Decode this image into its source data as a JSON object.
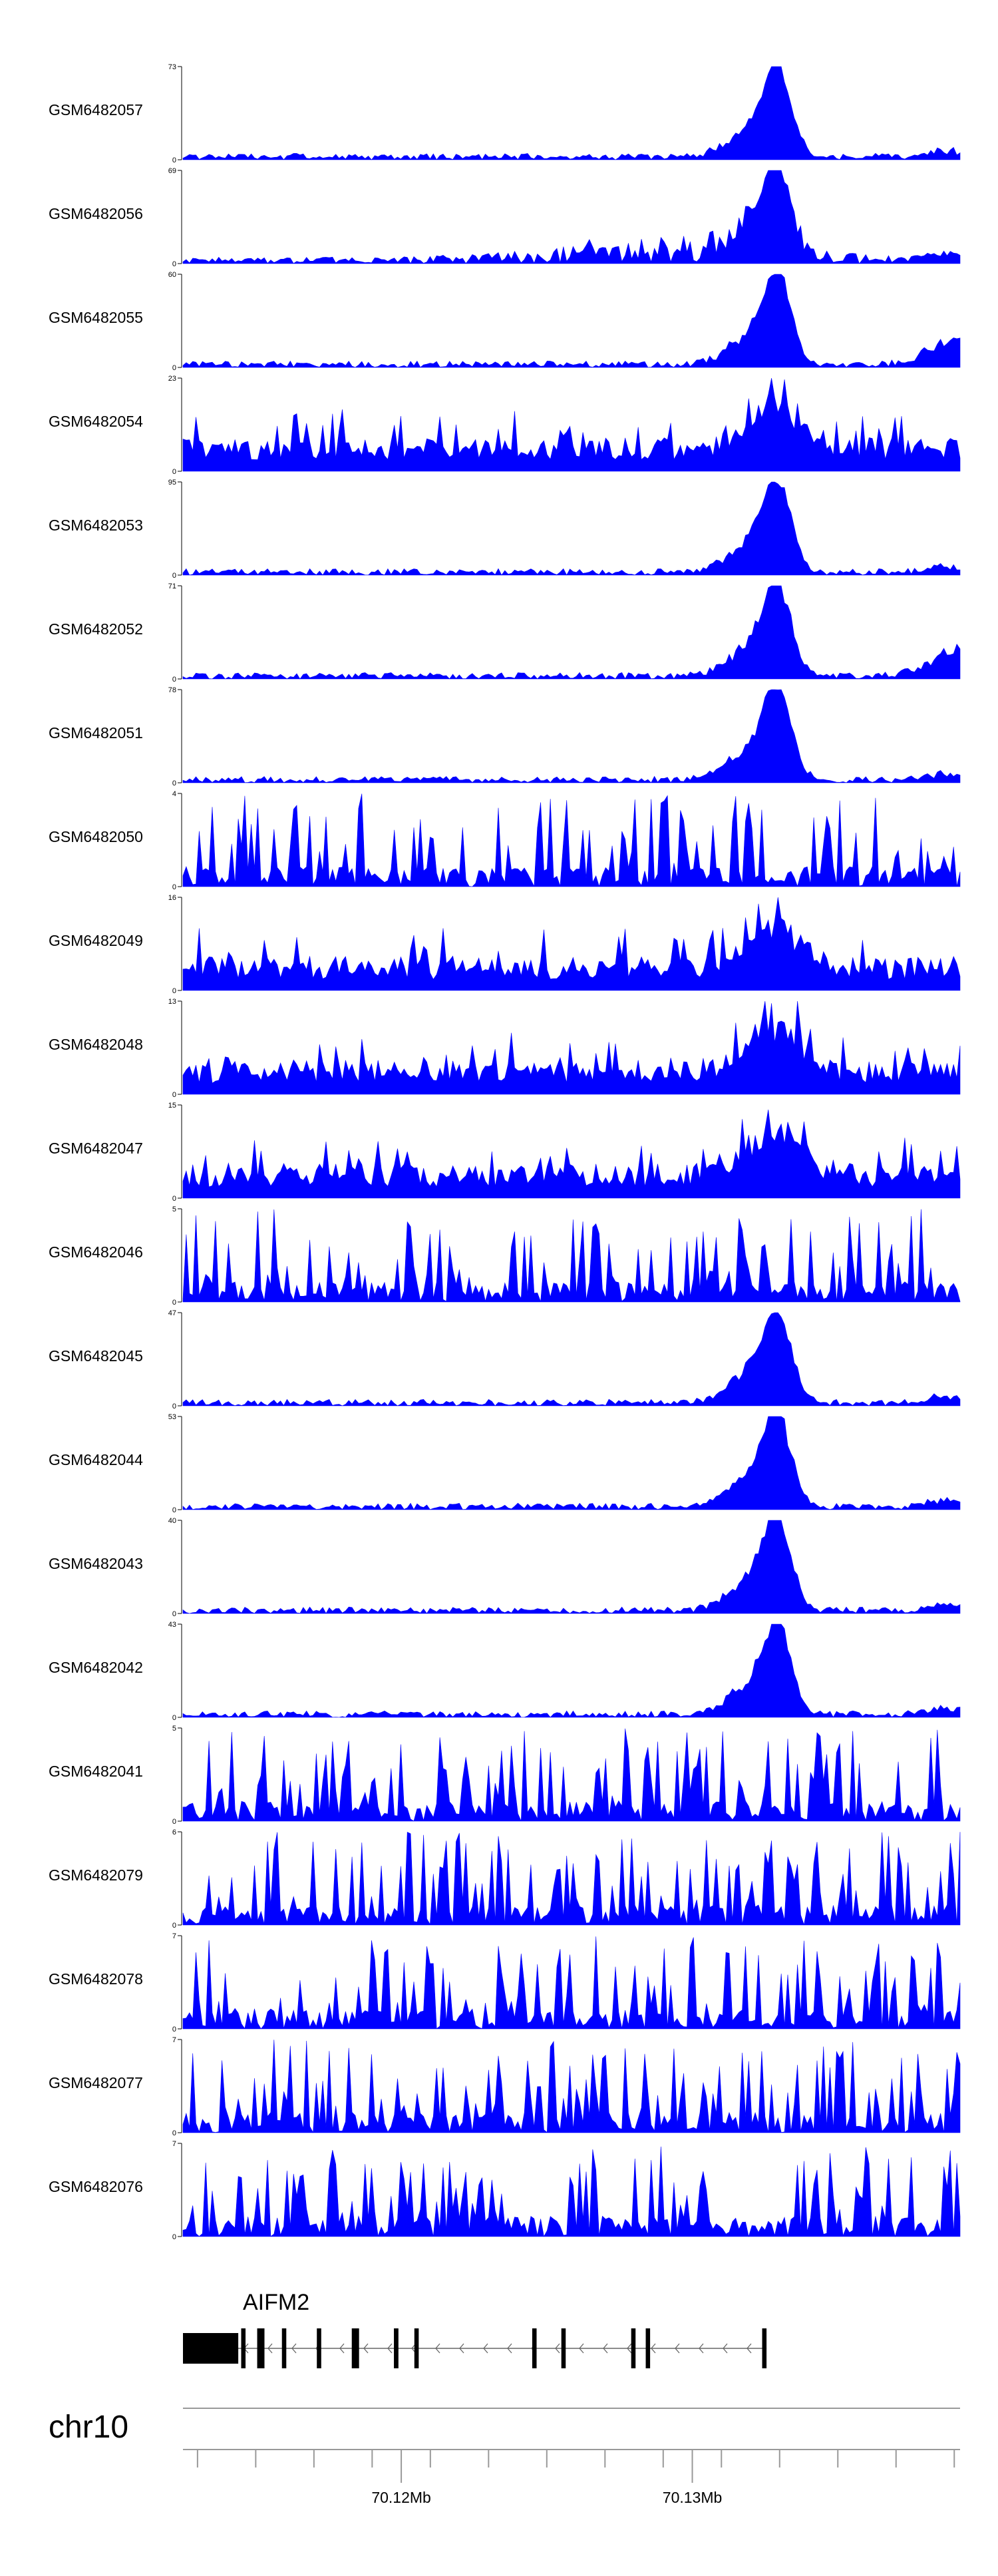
{
  "chart_data": {
    "type": "area",
    "color": "#0000ff",
    "x_range_mb": [
      70.1125,
      70.1392
    ],
    "tracks": [
      {
        "label": "GSM6482057",
        "ymax": "73",
        "profile": "peak",
        "seed": 1
      },
      {
        "label": "GSM6482056",
        "ymax": "69",
        "profile": "broad",
        "seed": 2
      },
      {
        "label": "GSM6482055",
        "ymax": "60",
        "profile": "peak_end",
        "seed": 3
      },
      {
        "label": "GSM6482054",
        "ymax": "23",
        "profile": "mixed",
        "seed": 4
      },
      {
        "label": "GSM6482053",
        "ymax": "95",
        "profile": "peak",
        "seed": 5
      },
      {
        "label": "GSM6482052",
        "ymax": "71",
        "profile": "peak_end",
        "seed": 6
      },
      {
        "label": "GSM6482051",
        "ymax": "78",
        "profile": "peak",
        "seed": 7
      },
      {
        "label": "GSM6482050",
        "ymax": "4",
        "profile": "noise",
        "seed": 8
      },
      {
        "label": "GSM6482049",
        "ymax": "16",
        "profile": "mixed",
        "seed": 9
      },
      {
        "label": "GSM6482048",
        "ymax": "13",
        "profile": "mixed",
        "seed": 10
      },
      {
        "label": "GSM6482047",
        "ymax": "15",
        "profile": "mixed",
        "seed": 11
      },
      {
        "label": "GSM6482046",
        "ymax": "5",
        "profile": "noise",
        "seed": 12
      },
      {
        "label": "GSM6482045",
        "ymax": "47",
        "profile": "peak",
        "seed": 13
      },
      {
        "label": "GSM6482044",
        "ymax": "53",
        "profile": "peak",
        "seed": 14
      },
      {
        "label": "GSM6482043",
        "ymax": "40",
        "profile": "peak",
        "seed": 15
      },
      {
        "label": "GSM6482042",
        "ymax": "43",
        "profile": "peak",
        "seed": 16
      },
      {
        "label": "GSM6482041",
        "ymax": "5",
        "profile": "noise",
        "seed": 17
      },
      {
        "label": "GSM6482079",
        "ymax": "6",
        "profile": "noise",
        "seed": 18
      },
      {
        "label": "GSM6482078",
        "ymax": "7",
        "profile": "noise",
        "seed": 19
      },
      {
        "label": "GSM6482077",
        "ymax": "7",
        "profile": "noise",
        "seed": 20
      },
      {
        "label": "GSM6482076",
        "ymax": "7",
        "profile": "noise",
        "seed": 21
      }
    ],
    "y_min_label": "0",
    "gene": {
      "name": "AIFM2",
      "strand": "-",
      "exons_mb": [
        [
          70.1125,
          70.1144
        ],
        [
          70.1145,
          70.11465
        ],
        [
          70.11505,
          70.1153
        ],
        [
          70.1159,
          70.11605
        ],
        [
          70.1171,
          70.11725
        ],
        [
          70.1183,
          70.11855
        ],
        [
          70.11975,
          70.1199
        ],
        [
          70.11975,
          70.1199
        ],
        [
          70.12045,
          70.1206
        ],
        [
          70.1245,
          70.12465
        ],
        [
          70.1255,
          70.12565
        ],
        [
          70.1279,
          70.12805
        ],
        [
          70.1284,
          70.12855
        ],
        [
          70.1324,
          70.13255
        ]
      ]
    },
    "chromosome": "chr10",
    "axis_labels": [
      {
        "label": "70.12Mb",
        "mb": 70.12
      },
      {
        "label": "70.13Mb",
        "mb": 70.13
      }
    ]
  }
}
